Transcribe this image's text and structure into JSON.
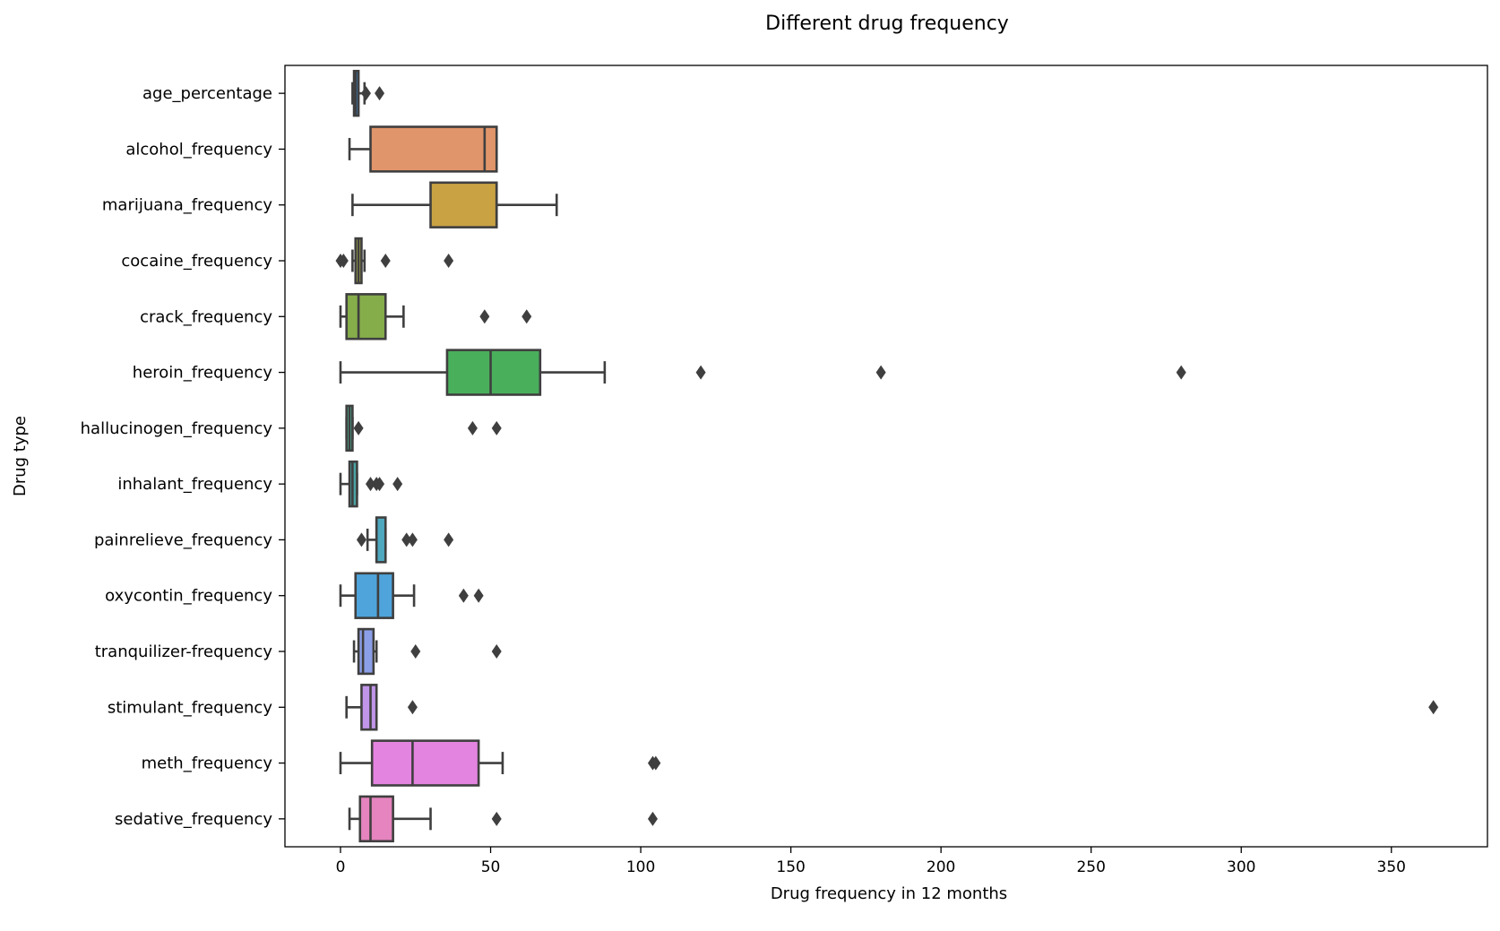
{
  "chart_data": {
    "type": "boxplot",
    "orientation": "horizontal",
    "title": "Different drug frequency",
    "xlabel": "Drug frequency in 12 months",
    "ylabel": "Drug type",
    "xlim": [
      -18.5,
      382
    ],
    "xticks": [
      0,
      50,
      100,
      150,
      200,
      250,
      300,
      350
    ],
    "grid": false,
    "categories": [
      "age_percentage",
      "alcohol_frequency",
      "marijuana_frequency",
      "cocaine_frequency",
      "crack_frequency",
      "heroin_frequency",
      "hallucinogen_frequency",
      "inhalant_frequency",
      "painrelieve_frequency",
      "oxycontin_frequency",
      "tranquilizer-frequency",
      "stimulant_frequency",
      "meth_frequency",
      "sedative_frequency"
    ],
    "boxes": [
      {
        "name": "age_percentage",
        "color": "#3b75af",
        "whislo": 4.0,
        "q1": 4.5,
        "med": 5.0,
        "q3": 6.0,
        "whishi": 8.0,
        "fliers": [
          8.5,
          13.0
        ]
      },
      {
        "name": "alcohol_frequency",
        "color": "#e1956a",
        "whislo": 3.0,
        "q1": 10.0,
        "med": 48.0,
        "q3": 52.0,
        "whishi": 52.0,
        "fliers": []
      },
      {
        "name": "marijuana_frequency",
        "color": "#c9a243",
        "whislo": 4.0,
        "q1": 30.0,
        "med": 52.0,
        "q3": 52.0,
        "whishi": 72.0,
        "fliers": []
      },
      {
        "name": "cocaine_frequency",
        "color": "#a5a548",
        "whislo": 4.0,
        "q1": 5.0,
        "med": 6.0,
        "q3": 7.0,
        "whishi": 8.0,
        "fliers": [
          0.0,
          1.0,
          15.0,
          36.0
        ]
      },
      {
        "name": "crack_frequency",
        "color": "#85ad4a",
        "whislo": 0.0,
        "q1": 2.0,
        "med": 6.0,
        "q3": 15.0,
        "whishi": 21.0,
        "fliers": [
          48.0,
          62.0
        ]
      },
      {
        "name": "heroin_frequency",
        "color": "#4aaf5b",
        "whislo": 0.0,
        "q1": 35.5,
        "med": 50.0,
        "q3": 66.5,
        "whishi": 88.0,
        "fliers": [
          120.0,
          180.0,
          280.0
        ]
      },
      {
        "name": "hallucinogen_frequency",
        "color": "#4aa98d",
        "whislo": 2.0,
        "q1": 2.0,
        "med": 3.0,
        "q3": 4.0,
        "whishi": 4.0,
        "fliers": [
          6.0,
          44.0,
          52.0
        ]
      },
      {
        "name": "inhalant_frequency",
        "color": "#4aa6a4",
        "whislo": 0.0,
        "q1": 3.0,
        "med": 4.0,
        "q3": 5.5,
        "whishi": 5.5,
        "fliers": [
          10.0,
          12.0,
          13.0,
          19.0
        ]
      },
      {
        "name": "painrelieve_frequency",
        "color": "#4ea9bf",
        "whislo": 9.0,
        "q1": 12.0,
        "med": 12.0,
        "q3": 15.0,
        "whishi": 15.0,
        "fliers": [
          7.0,
          22.0,
          24.0,
          36.0
        ]
      },
      {
        "name": "oxycontin_frequency",
        "color": "#4fa4dc",
        "whislo": 0.0,
        "q1": 5.0,
        "med": 12.5,
        "q3": 17.5,
        "whishi": 24.5,
        "fliers": [
          41.0,
          46.0
        ]
      },
      {
        "name": "tranquilizer-frequency",
        "color": "#8b9ee8",
        "whislo": 4.5,
        "q1": 6.0,
        "med": 7.5,
        "q3": 11.0,
        "whishi": 12.0,
        "fliers": [
          25.0,
          52.0
        ]
      },
      {
        "name": "stimulant_frequency",
        "color": "#c195ea",
        "whislo": 2.0,
        "q1": 7.0,
        "med": 10.0,
        "q3": 12.0,
        "whishi": 12.0,
        "fliers": [
          24.0,
          364.0
        ]
      },
      {
        "name": "meth_frequency",
        "color": "#e384e0",
        "whislo": 0.0,
        "q1": 10.5,
        "med": 24.0,
        "q3": 46.0,
        "whishi": 54.0,
        "fliers": [
          104.0,
          105.0
        ]
      },
      {
        "name": "sedative_frequency",
        "color": "#e584be",
        "whislo": 3.0,
        "q1": 6.5,
        "med": 10.0,
        "q3": 17.5,
        "whishi": 30.0,
        "fliers": [
          52.0,
          104.0
        ]
      }
    ]
  }
}
